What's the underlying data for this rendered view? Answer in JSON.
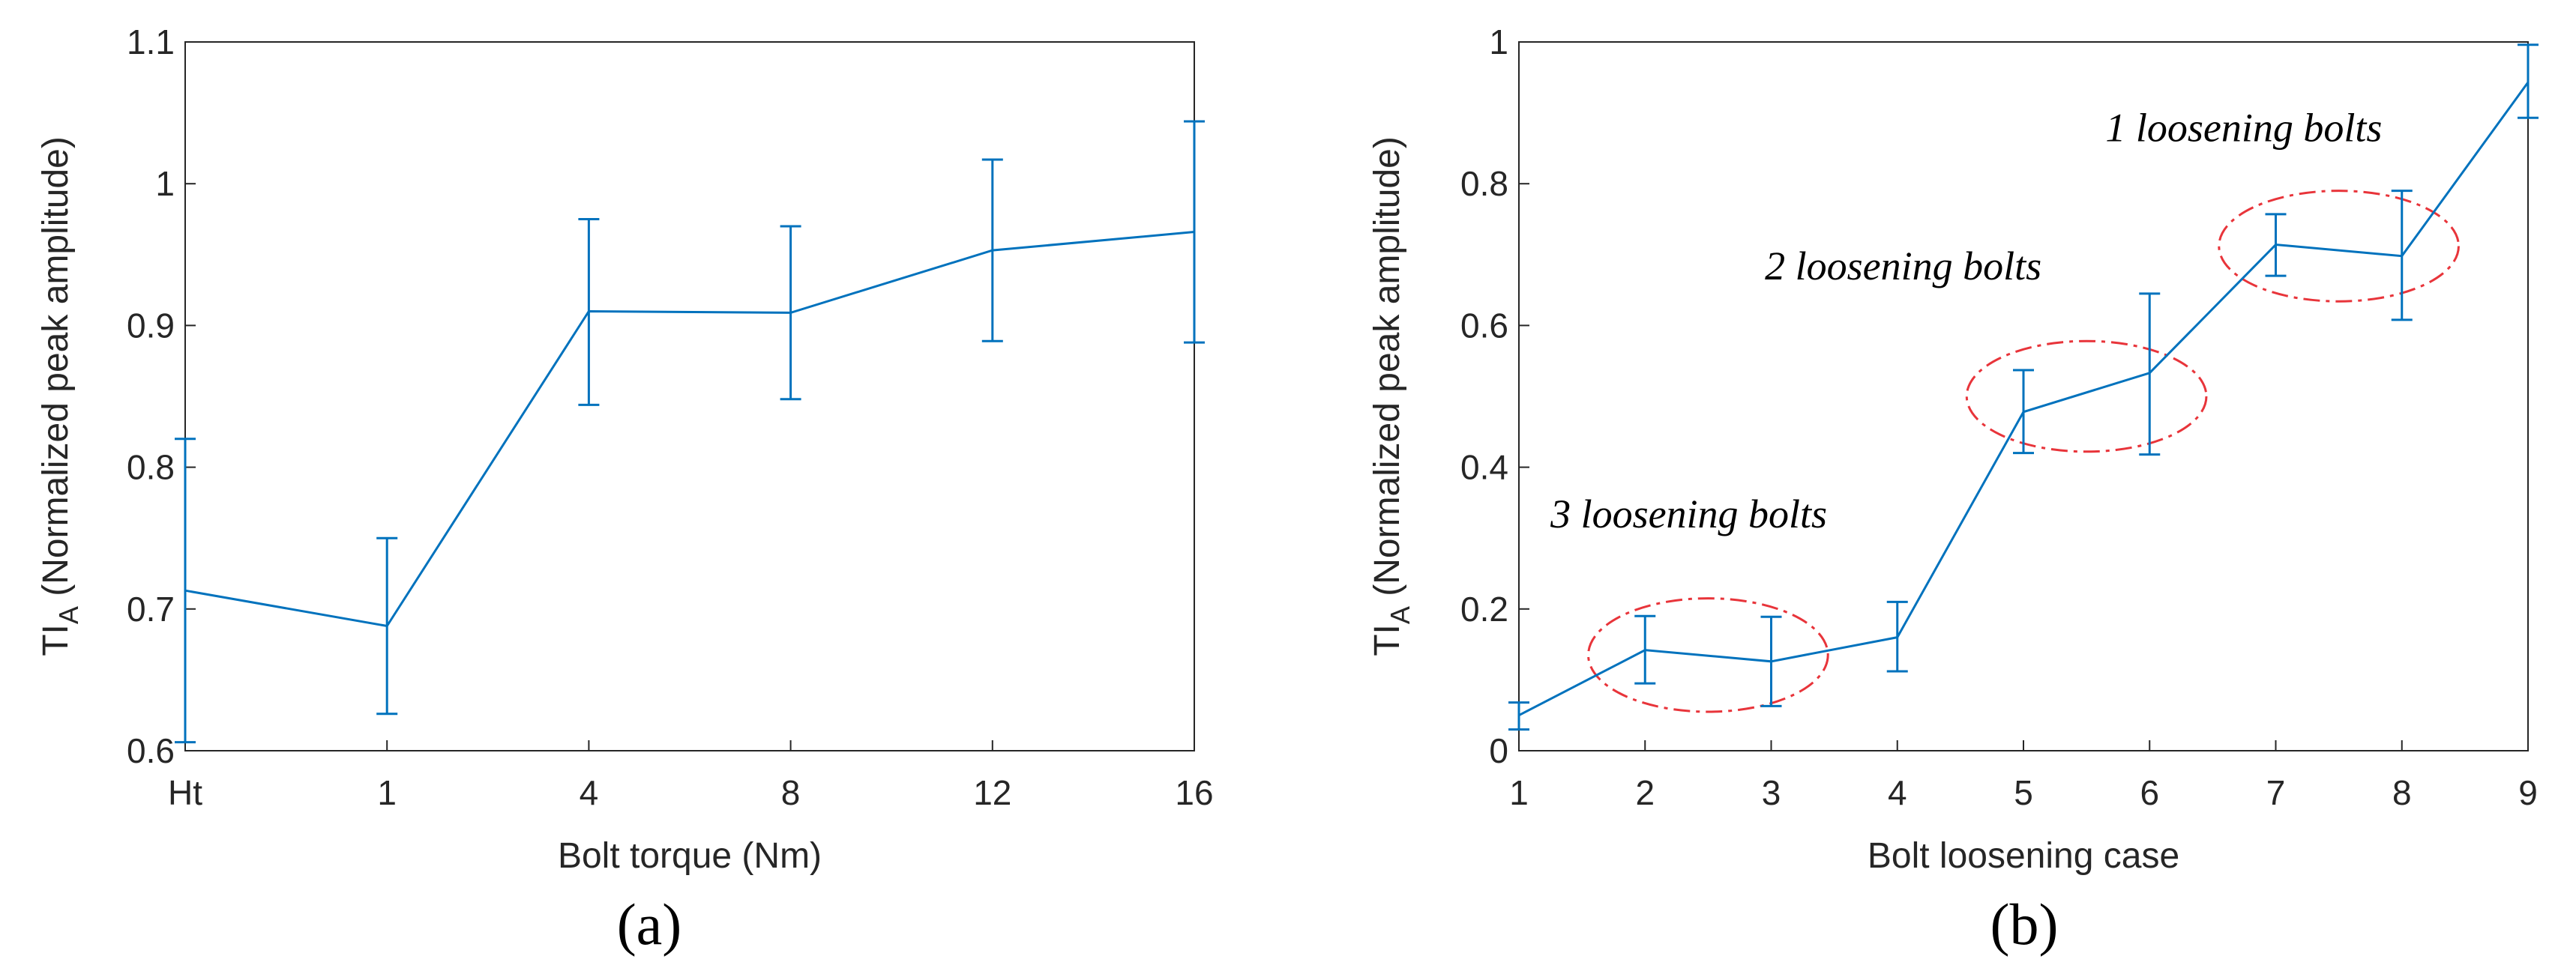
{
  "chart_data": [
    {
      "type": "line",
      "panel": "(a)",
      "categories": [
        "Ht",
        "1",
        "4",
        "8",
        "12",
        "16"
      ],
      "values": [
        0.713,
        0.688,
        0.91,
        0.909,
        0.953,
        0.966
      ],
      "err_lower": [
        0.606,
        0.626,
        0.844,
        0.848,
        0.889,
        0.888
      ],
      "err_upper": [
        0.82,
        0.75,
        0.975,
        0.97,
        1.017,
        1.044
      ],
      "xlabel": "Bolt torque (Nm)",
      "ylabel_main": "TI",
      "ylabel_sub": "A",
      "ylabel_rest": " (Normalized peak amplitude)",
      "ylim": [
        0.6,
        1.1
      ],
      "yticks": [
        "0.6",
        "0.7",
        "0.8",
        "0.9",
        "1",
        "1.1"
      ],
      "caption": "(a)",
      "color": "#0072BD",
      "grid": false
    },
    {
      "type": "line",
      "panel": "(b)",
      "x": [
        1,
        2,
        3,
        4,
        5,
        6,
        7,
        8,
        9
      ],
      "xticks": [
        "1",
        "2",
        "3",
        "4",
        "5",
        "6",
        "7",
        "8",
        "9"
      ],
      "values": [
        0.05,
        0.142,
        0.126,
        0.16,
        0.478,
        0.533,
        0.714,
        0.698,
        0.943
      ],
      "err_lower": [
        0.03,
        0.095,
        0.063,
        0.112,
        0.42,
        0.418,
        0.67,
        0.608,
        0.893
      ],
      "err_upper": [
        0.068,
        0.19,
        0.189,
        0.21,
        0.537,
        0.645,
        0.757,
        0.79,
        0.996
      ],
      "xlabel": "Bolt loosening case",
      "ylabel_main": "TI",
      "ylabel_sub": "A",
      "ylabel_rest": " (Normalized peak amplitude)",
      "ylim": [
        0,
        1
      ],
      "yticks": [
        "0",
        "0.2",
        "0.4",
        "0.6",
        "0.8",
        "1"
      ],
      "caption": "(b)",
      "color": "#0072BD",
      "grid": false,
      "annotations": [
        {
          "text": "3 loosening bolts",
          "x": 1.25,
          "y": 0.315
        },
        {
          "text": "2 loosening bolts",
          "x": 2.95,
          "y": 0.665
        },
        {
          "text": "1 loosening bolts",
          "x": 5.65,
          "y": 0.86
        }
      ],
      "highlight_groups": [
        {
          "x_center": 2.5,
          "y_center": 0.135,
          "x_radius": 0.95,
          "y_radius": 0.08
        },
        {
          "x_center": 5.5,
          "y_center": 0.5,
          "x_radius": 0.95,
          "y_radius": 0.078
        },
        {
          "x_center": 7.5,
          "y_center": 0.712,
          "x_radius": 0.95,
          "y_radius": 0.078
        }
      ]
    }
  ]
}
